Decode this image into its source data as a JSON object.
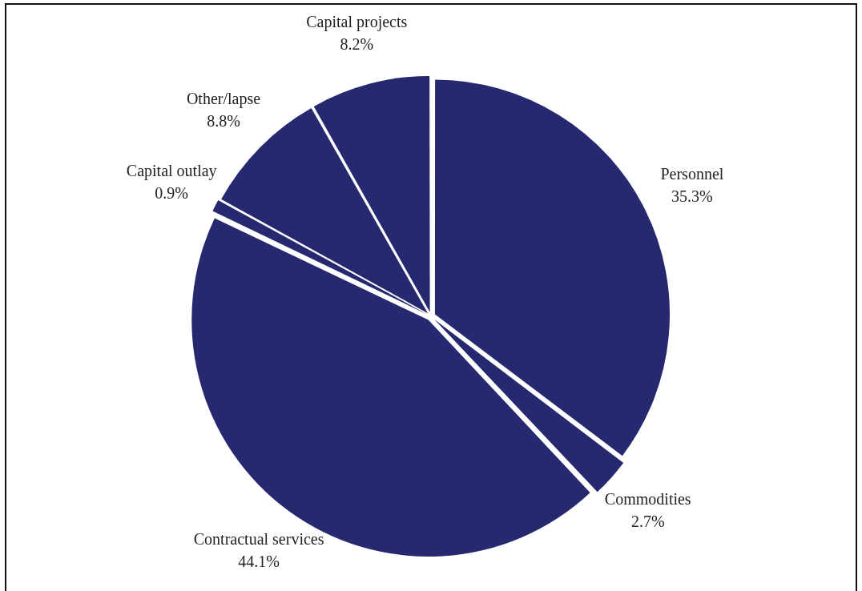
{
  "chart_data": {
    "type": "pie",
    "categories": [
      "Personnel",
      "Commodities",
      "Contractual services",
      "Capital outlay",
      "Other/lapse",
      "Capital projects"
    ],
    "values": [
      35.3,
      2.7,
      44.1,
      0.9,
      8.8,
      8.2
    ],
    "colors": [
      "#272970",
      "#272970",
      "#272970",
      "#272970",
      "#272970",
      "#272970"
    ],
    "value_labels": [
      "35.3%",
      "2.7%",
      "44.1%",
      "0.9%",
      "8.8%",
      "8.2%"
    ],
    "legend": false
  }
}
